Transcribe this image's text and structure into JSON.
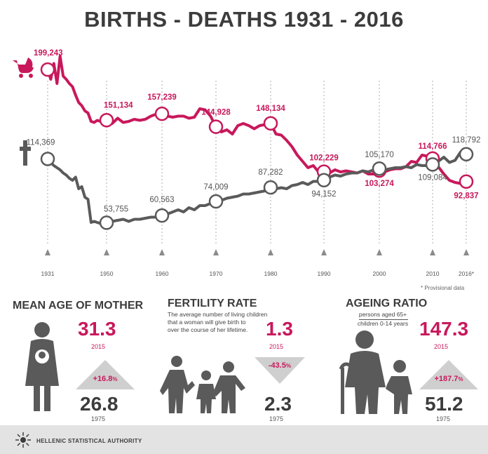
{
  "title": "BIRTHS - DEATHS 1931 - 2016",
  "provisional_note": "* Provisional data",
  "chart_data": {
    "type": "line",
    "title": "BIRTHS - DEATHS 1931 - 2016",
    "categories": [
      "1931",
      "1950",
      "1960",
      "1970",
      "1980",
      "1990",
      "2000",
      "2010",
      "2016*"
    ],
    "series": [
      {
        "name": "Births",
        "color": "#c8185b",
        "x": [
          1931,
          1932,
          1933,
          1934,
          1935,
          1936,
          1937,
          1938,
          1939,
          1940,
          1941,
          1942,
          1943,
          1944,
          1945,
          1946,
          1947,
          1948,
          1949,
          1950,
          1951,
          1952,
          1953,
          1954,
          1955,
          1956,
          1957,
          1958,
          1959,
          1960,
          1961,
          1962,
          1963,
          1964,
          1965,
          1966,
          1967,
          1968,
          1969,
          1970,
          1971,
          1972,
          1973,
          1974,
          1975,
          1976,
          1977,
          1978,
          1979,
          1980,
          1981,
          1982,
          1983,
          1984,
          1985,
          1986,
          1987,
          1988,
          1989,
          1990,
          1991,
          1992,
          1993,
          1994,
          1995,
          1996,
          1997,
          1998,
          1999,
          2000,
          2001,
          2002,
          2003,
          2004,
          2005,
          2006,
          2007,
          2008,
          2009,
          2010,
          2011,
          2012,
          2013,
          2014,
          2015,
          2016
        ],
        "values": [
          199243,
          190000,
          205000,
          186000,
          212000,
          193000,
          190000,
          186000,
          183000,
          175000,
          168000,
          165000,
          160000,
          158000,
          150000,
          149000,
          151000,
          150000,
          152000,
          151134,
          148000,
          153000,
          149000,
          150000,
          152000,
          151000,
          152000,
          155000,
          157000,
          157239,
          155000,
          154000,
          155000,
          155000,
          153000,
          154000,
          162000,
          161000,
          155000,
          144928,
          140000,
          142000,
          138000,
          146000,
          148000,
          146000,
          143000,
          146000,
          147000,
          148134,
          138000,
          137000,
          132000,
          126000,
          118000,
          112000,
          106000,
          108000,
          102000,
          102229,
          101000,
          104000,
          102000,
          103000,
          102000,
          101000,
          103000,
          100000,
          100000,
          103274,
          102000,
          104000,
          105000,
          105000,
          107000,
          112000,
          111000,
          118000,
          117000,
          114766,
          107000,
          100000,
          94000,
          92000,
          91000,
          92837
        ]
      },
      {
        "name": "Deaths",
        "color": "#5a5a5a",
        "x": [
          1931,
          1932,
          1933,
          1934,
          1935,
          1936,
          1937,
          1938,
          1939,
          1940,
          1941,
          1942,
          1943,
          1944,
          1945,
          1946,
          1947,
          1948,
          1949,
          1950,
          1951,
          1952,
          1953,
          1954,
          1955,
          1956,
          1957,
          1958,
          1959,
          1960,
          1961,
          1962,
          1963,
          1964,
          1965,
          1966,
          1967,
          1968,
          1969,
          1970,
          1971,
          1972,
          1973,
          1974,
          1975,
          1976,
          1977,
          1978,
          1979,
          1980,
          1981,
          1982,
          1983,
          1984,
          1985,
          1986,
          1987,
          1988,
          1989,
          1990,
          1991,
          1992,
          1993,
          1994,
          1995,
          1996,
          1997,
          1998,
          1999,
          2000,
          2001,
          2002,
          2003,
          2004,
          2005,
          2006,
          2007,
          2008,
          2009,
          2010,
          2011,
          2012,
          2013,
          2014,
          2015,
          2016
        ],
        "values": [
          114369,
          111000,
          108000,
          106000,
          104000,
          101000,
          99000,
          96000,
          94000,
          97000,
          86000,
          88000,
          78000,
          76000,
          54000,
          55000,
          54000,
          53000,
          55000,
          53755,
          55000,
          56000,
          57000,
          55000,
          57000,
          57000,
          58000,
          59000,
          59000,
          60563,
          62000,
          64000,
          66000,
          64000,
          68000,
          66000,
          70000,
          70000,
          72000,
          74009,
          75000,
          77000,
          78000,
          79000,
          81000,
          81000,
          82000,
          83000,
          84000,
          87282,
          86000,
          87000,
          86000,
          89000,
          90000,
          92000,
          90000,
          93000,
          93000,
          94152,
          97000,
          99000,
          98000,
          100000,
          101000,
          101000,
          103000,
          102000,
          104000,
          105170,
          104000,
          105000,
          106000,
          106000,
          107000,
          106000,
          109000,
          108000,
          108000,
          109084,
          112000,
          116000,
          111000,
          113000,
          121000,
          118792
        ]
      }
    ],
    "annotations": [
      {
        "series": "Births",
        "year": 1931,
        "label": "199,243"
      },
      {
        "series": "Births",
        "year": 1950,
        "label": "151,134"
      },
      {
        "series": "Births",
        "year": 1960,
        "label": "157,239"
      },
      {
        "series": "Births",
        "year": 1970,
        "label": "144,928"
      },
      {
        "series": "Births",
        "year": 1980,
        "label": "148,134"
      },
      {
        "series": "Births",
        "year": 1990,
        "label": "102,229"
      },
      {
        "series": "Births",
        "year": 2000,
        "label": "103,274"
      },
      {
        "series": "Births",
        "year": 2010,
        "label": "114,766"
      },
      {
        "series": "Births",
        "year": 2016,
        "label": "92,837"
      },
      {
        "series": "Deaths",
        "year": 1931,
        "label": "114,369"
      },
      {
        "series": "Deaths",
        "year": 1950,
        "label": "53,755"
      },
      {
        "series": "Deaths",
        "year": 1960,
        "label": "60,563"
      },
      {
        "series": "Deaths",
        "year": 1970,
        "label": "74,009"
      },
      {
        "series": "Deaths",
        "year": 1980,
        "label": "87,282"
      },
      {
        "series": "Deaths",
        "year": 1990,
        "label": "94,152"
      },
      {
        "series": "Deaths",
        "year": 2000,
        "label": "105,170"
      },
      {
        "series": "Deaths",
        "year": 2010,
        "label": "109,084"
      },
      {
        "series": "Deaths",
        "year": 2016,
        "label": "118,792"
      }
    ],
    "ylim": [
      40000,
      210000
    ]
  },
  "stats": {
    "mother": {
      "heading": "MEAN AGE OF MOTHER",
      "current": "31.3",
      "current_year": "2015",
      "change": "+16.8",
      "change_unit": "%",
      "past": "26.8",
      "past_year": "1975"
    },
    "fertility": {
      "heading": "FERTILITY RATE",
      "description_1": "The average number of living children",
      "description_2": "that a woman will give birth to",
      "description_3": "over the course of her lifetime.",
      "current": "1.3",
      "current_year": "2015",
      "change": "-43.5",
      "change_unit": "%",
      "past": "2.3",
      "past_year": "1975"
    },
    "ageing": {
      "heading": "AGEING RATIO",
      "numerator": "persons aged 65+",
      "denominator": "children 0-14 years",
      "current": "147.3",
      "current_year": "2015",
      "change": "+187.7",
      "change_unit": "%",
      "past": "51.2",
      "past_year": "1975"
    }
  },
  "footer": {
    "org": "HELLENIC STATISTICAL AUTHORITY"
  },
  "icons": [
    "baby-carriage-icon",
    "cross-icon",
    "mother-with-baby-icon",
    "family-icon",
    "elderly-with-child-icon",
    "elstat-logo-icon"
  ]
}
